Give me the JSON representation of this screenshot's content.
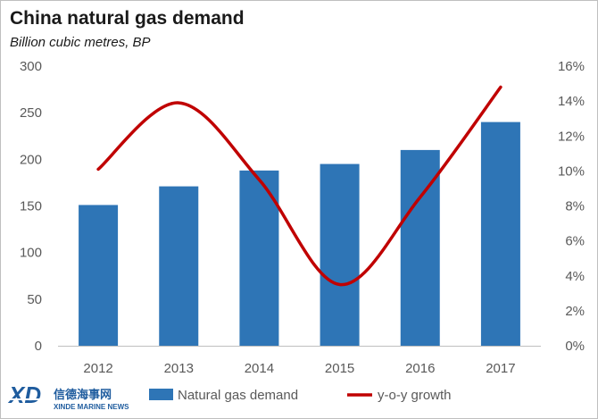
{
  "chart_data": {
    "type": "bar",
    "title": "China natural gas demand",
    "subtitle": "Billion cubic metres, BP",
    "categories": [
      "2012",
      "2013",
      "2014",
      "2015",
      "2016",
      "2017"
    ],
    "series": [
      {
        "name": "Natural gas demand",
        "type": "bar",
        "axis": "left",
        "color": "#2e75b6",
        "values": [
          151,
          171,
          188,
          195,
          210,
          240
        ]
      },
      {
        "name": "y-o-y growth",
        "type": "line",
        "axis": "right",
        "color": "#c00000",
        "values": [
          10.1,
          13.9,
          9.5,
          3.5,
          8.5,
          14.8
        ]
      }
    ],
    "ylim_left": [
      0,
      300
    ],
    "yticks_left": [
      "0",
      "50",
      "100",
      "150",
      "200",
      "250",
      "300"
    ],
    "ylim_right": [
      0,
      16
    ],
    "yticks_right": [
      "0%",
      "2%",
      "4%",
      "6%",
      "8%",
      "10%",
      "12%",
      "14%",
      "16%"
    ],
    "grid": false,
    "legend_position": "bottom"
  },
  "logo": {
    "mark": "XD",
    "name_cn": "信德海事网",
    "name_en": "XINDE MARINE NEWS",
    "color": "#1f5c9e"
  }
}
